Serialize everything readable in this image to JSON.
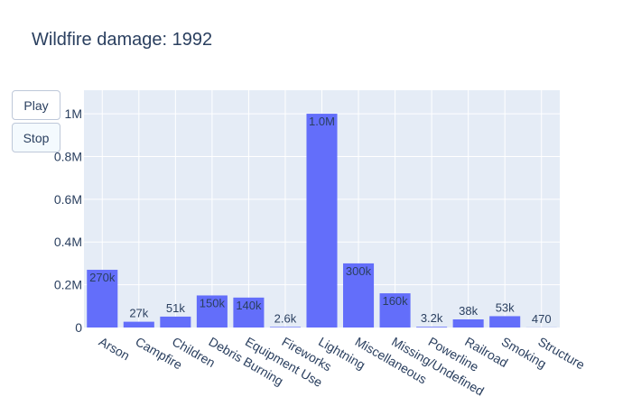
{
  "chart_data": {
    "type": "bar",
    "title": "Wildfire damage: 1992",
    "categories": [
      "Arson",
      "Campfire",
      "Children",
      "Debris Burning",
      "Equipment Use",
      "Fireworks",
      "Lightning",
      "Miscellaneous",
      "Missing/Undefined",
      "Powerline",
      "Railroad",
      "Smoking",
      "Structure"
    ],
    "values": [
      270000,
      27000,
      51000,
      150000,
      140000,
      2600,
      1000000,
      300000,
      160000,
      3200,
      38000,
      53000,
      470
    ],
    "data_labels": [
      "270k",
      "27k",
      "51k",
      "150k",
      "140k",
      "2.6k",
      "1.0M",
      "300k",
      "160k",
      "3.2k",
      "38k",
      "53k",
      "470"
    ],
    "ylim": [
      0,
      1110000
    ],
    "y_ticks": [
      0,
      200000,
      400000,
      600000,
      800000,
      1000000
    ],
    "y_tick_labels": [
      "0",
      "0.2M",
      "0.4M",
      "0.6M",
      "0.8M",
      "1M"
    ],
    "xlabel": "",
    "ylabel": "",
    "grid": true,
    "bar_color": "#636efa",
    "plot_bg": "#e5ecf6"
  },
  "controls": {
    "play_label": "Play",
    "stop_label": "Stop"
  }
}
